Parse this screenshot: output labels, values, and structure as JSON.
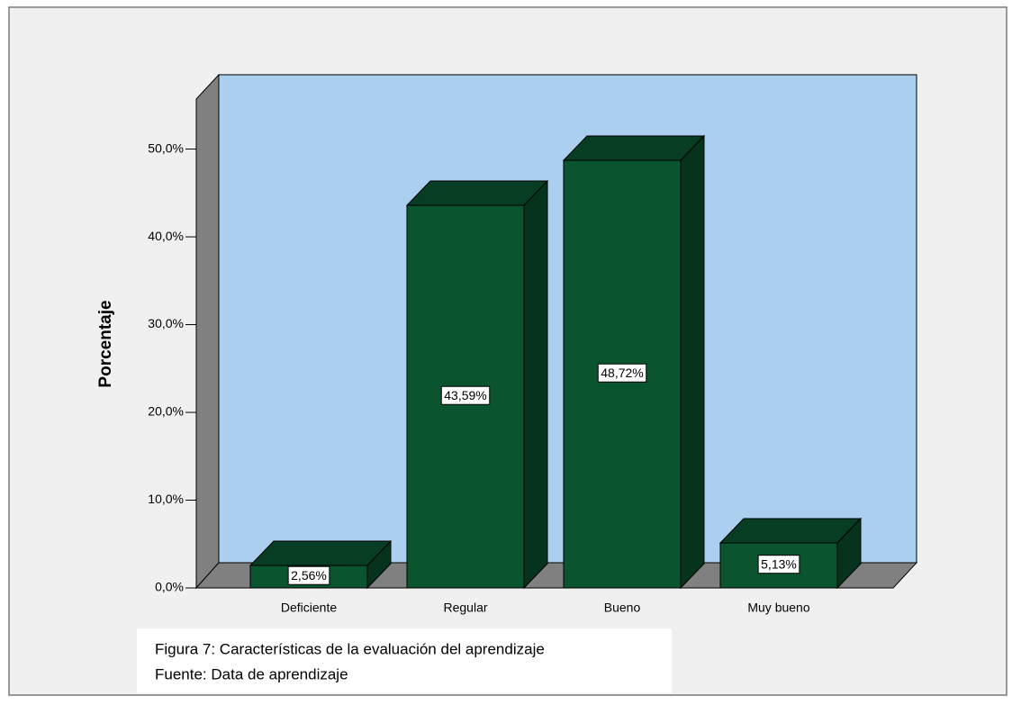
{
  "chart_data": {
    "type": "bar",
    "y_label": "Porcentaje",
    "categories": [
      "Deficiente",
      "Regular",
      "Bueno",
      "Muy bueno"
    ],
    "values": [
      2.56,
      43.59,
      48.72,
      5.13
    ],
    "value_labels": [
      "2,56%",
      "43,59%",
      "48,72%",
      "5,13%"
    ],
    "color": "#0a5530",
    "ylim": [
      0,
      55.7
    ],
    "yticks": [
      {
        "value": 0,
        "label": "0,0%"
      },
      {
        "value": 10,
        "label": "10,0%"
      },
      {
        "value": 20,
        "label": "20,0%"
      },
      {
        "value": 30,
        "label": "30,0%"
      },
      {
        "value": 40,
        "label": "40,0%"
      },
      {
        "value": 50,
        "label": "50,0%"
      }
    ],
    "grid": false,
    "caption": "Figura 7: Características de la evaluación del aprendizaje",
    "source": "Fuente: Data de aprendizaje"
  }
}
